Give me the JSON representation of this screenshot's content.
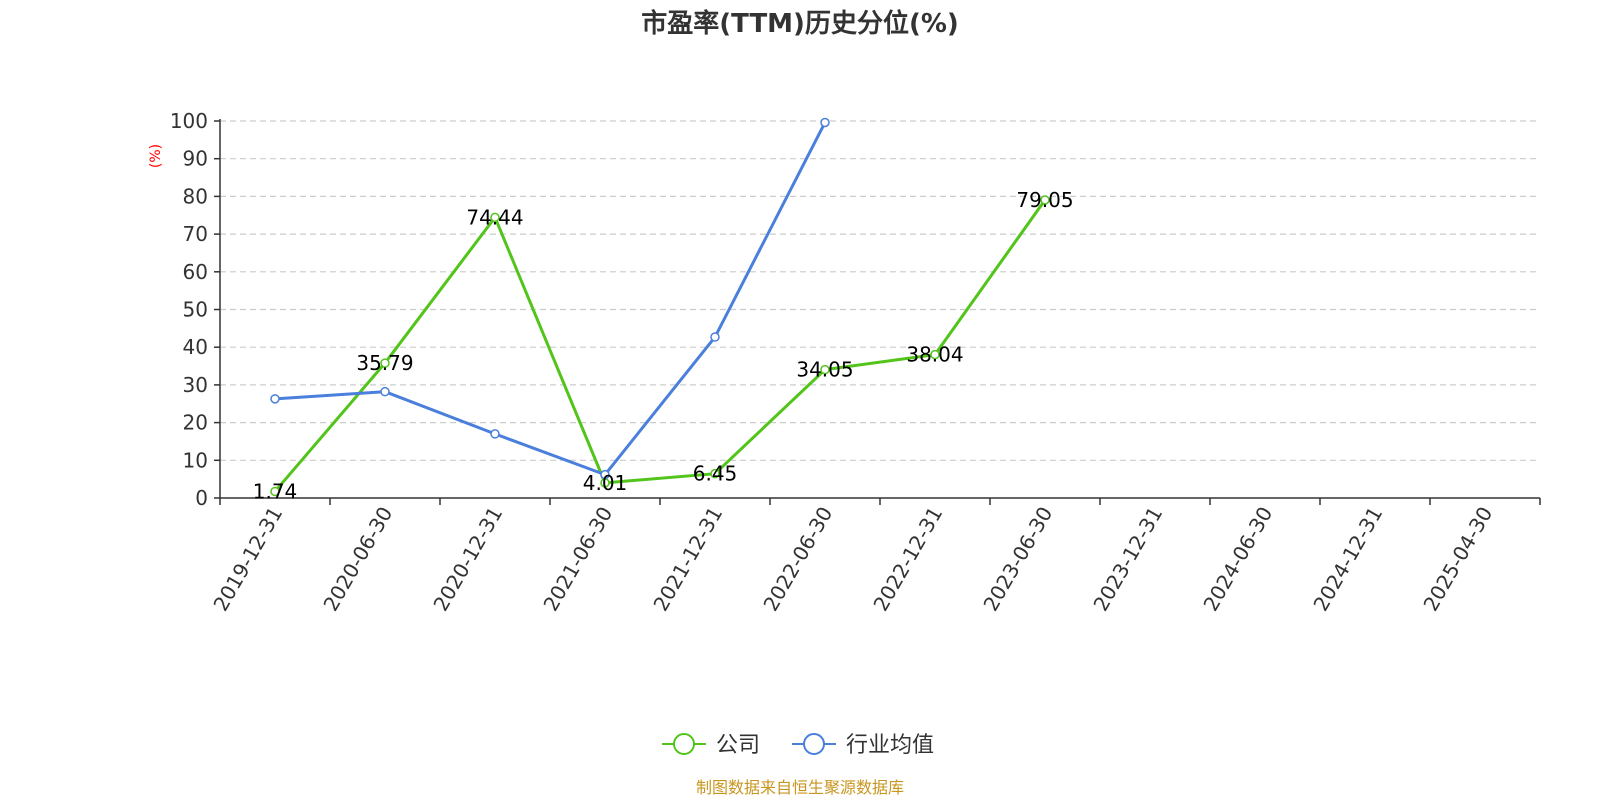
{
  "chart_data": {
    "type": "line",
    "title": "市盈率(TTM)历史分位(%)",
    "ylabel": "(%)",
    "ylim": [
      0,
      100
    ],
    "yticks": [
      0,
      10,
      20,
      30,
      40,
      50,
      60,
      70,
      80,
      90,
      100
    ],
    "grid": true,
    "legend_position": "bottom-center",
    "categories": [
      "2019-12-31",
      "2020-06-30",
      "2020-12-31",
      "2021-06-30",
      "2021-12-31",
      "2022-06-30",
      "2022-12-31",
      "2023-06-30",
      "2023-12-31",
      "2024-06-30",
      "2024-12-31",
      "2025-04-30"
    ],
    "series": [
      {
        "name": "公司",
        "color": "#52c41a",
        "values": [
          1.74,
          35.79,
          74.44,
          4.01,
          6.45,
          34.05,
          38.04,
          79.05,
          null,
          null,
          null,
          null
        ],
        "labels": [
          "1.74",
          "35.79",
          "74.44",
          "4.01",
          "6.45",
          "34.05",
          "38.04",
          "79.05",
          null,
          null,
          null,
          null
        ]
      },
      {
        "name": "行业均值",
        "color": "#4a7fdb",
        "values": [
          26.3,
          28.2,
          17.0,
          6.2,
          42.7,
          99.6,
          null,
          null,
          null,
          null,
          null,
          null
        ]
      }
    ]
  },
  "source": "制图数据来自恒生聚源数据库"
}
